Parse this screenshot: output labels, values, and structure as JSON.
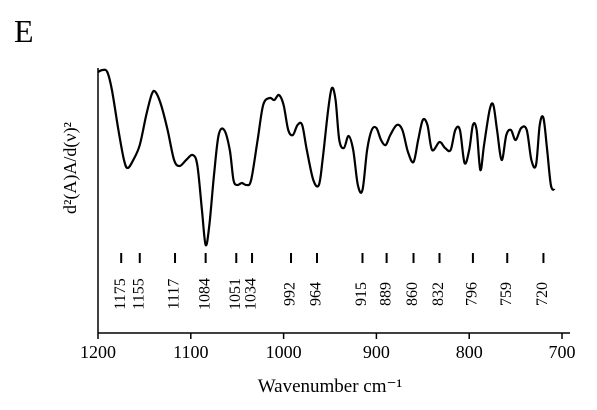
{
  "chart_data": {
    "type": "line",
    "panel_label": "E",
    "y_label": "d²(A)A/d(ν)²",
    "x_label": "Wavenumber cm⁻¹",
    "x": [
      1200,
      1195,
      1190,
      1185,
      1178,
      1172,
      1168,
      1162,
      1155,
      1148,
      1142,
      1138,
      1132,
      1125,
      1118,
      1112,
      1105,
      1098,
      1093,
      1088,
      1084,
      1080,
      1075,
      1070,
      1064,
      1058,
      1054,
      1050,
      1045,
      1040,
      1035,
      1028,
      1022,
      1015,
      1010,
      1005,
      1000,
      995,
      990,
      985,
      980,
      975,
      968,
      962,
      958,
      952,
      948,
      944,
      940,
      935,
      930,
      925,
      920,
      915,
      910,
      905,
      900,
      895,
      890,
      885,
      878,
      872,
      866,
      860,
      855,
      850,
      845,
      840,
      832,
      826,
      820,
      815,
      810,
      805,
      800,
      796,
      792,
      788,
      784,
      778,
      774,
      770,
      765,
      760,
      755,
      750,
      744,
      738,
      733,
      728,
      724,
      720,
      716,
      712,
      708
    ],
    "series": [
      {
        "color": "#000000",
        "values": [
          261,
          263,
          261,
          243,
          203,
          173,
          165,
          173,
          188,
          218,
          239,
          241,
          228,
          203,
          173,
          167,
          173,
          178,
          168,
          123,
          88,
          108,
          158,
          198,
          203,
          183,
          153,
          148,
          150,
          148,
          153,
          193,
          228,
          235,
          233,
          238,
          228,
          203,
          198,
          208,
          208,
          183,
          153,
          148,
          173,
          223,
          245,
          233,
          193,
          185,
          197,
          183,
          148,
          143,
          183,
          203,
          205,
          193,
          188,
          198,
          208,
          203,
          181,
          171,
          193,
          213,
          208,
          183,
          191,
          185,
          183,
          203,
          203,
          170,
          183,
          208,
          203,
          163,
          188,
          223,
          228,
          203,
          173,
          198,
          203,
          193,
          205,
          203,
          173,
          168,
          208,
          215,
          183,
          148,
          143
        ]
      }
    ],
    "xlim": [
      1200,
      700
    ],
    "xticks": [
      1200,
      1100,
      1000,
      900,
      800,
      700
    ],
    "ylim": [
      0,
      265
    ],
    "peaks": [
      1175,
      1155,
      1117,
      1084,
      1051,
      1034,
      992,
      964,
      915,
      889,
      860,
      832,
      796,
      759,
      720
    ]
  }
}
